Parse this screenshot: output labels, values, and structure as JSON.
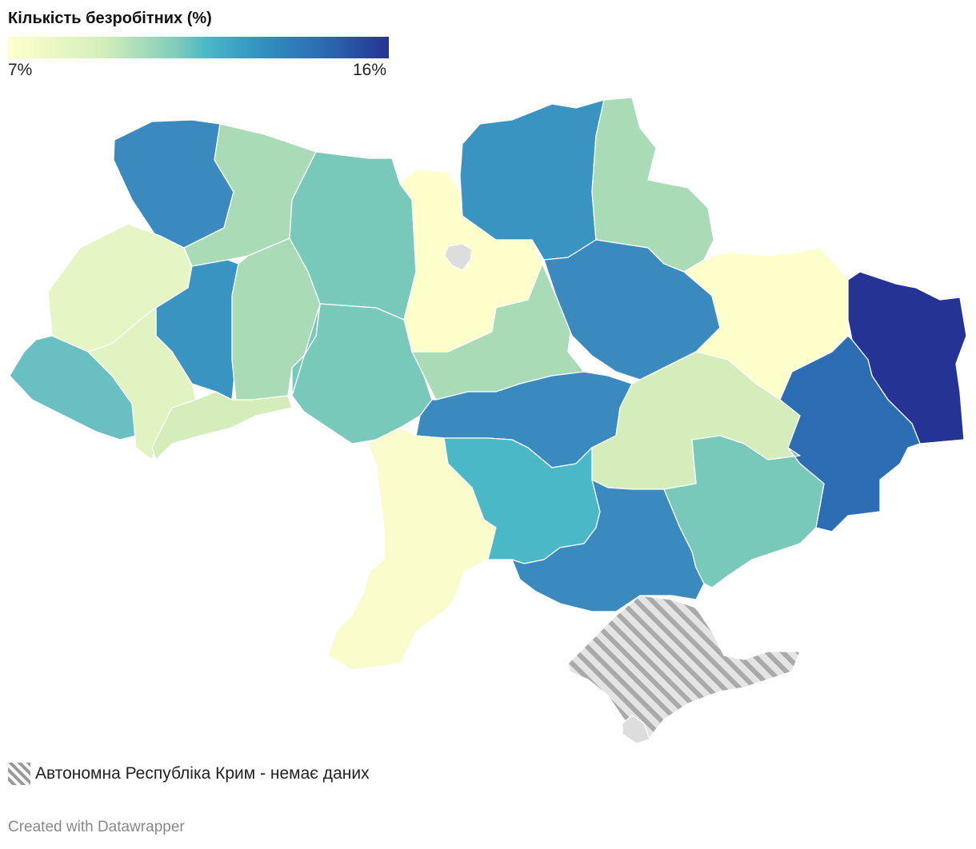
{
  "legend": {
    "title": "Кількість безробітних (%)",
    "min_label": "7%",
    "max_label": "16%",
    "color_min": "#ffffcc",
    "color_max": "#253494"
  },
  "no_data": {
    "label": "Автономна Республіка Крим - немає даних",
    "pattern": "diagonal-hatch",
    "color": "#aaaaaa"
  },
  "regions": [
    {
      "color": "#3a8abf"
    },
    {
      "color": "#a8dbb6"
    },
    {
      "color": "#79c9bb"
    },
    {
      "color": "#ffffcc"
    },
    {
      "color": "#3a94c1"
    },
    {
      "color": "#a8dbb6"
    },
    {
      "color": "#e5f5c4"
    },
    {
      "color": "#3a94c1"
    },
    {
      "color": "#a8dbb6"
    },
    {
      "color": "#79c9bb"
    },
    {
      "color": "#ffffcc"
    },
    {
      "color": "#a8dbb6"
    },
    {
      "color": "#3a8abf"
    },
    {
      "color": "#ffffcc"
    },
    {
      "color": "#253494"
    },
    {
      "color": "#69bfc1"
    },
    {
      "color": "#e0f3c0"
    },
    {
      "color": "#d4edbb"
    },
    {
      "color": "#79c9bb"
    },
    {
      "color": "#3a8abf"
    },
    {
      "color": "#d4edbb"
    },
    {
      "color": "#2c6db3"
    },
    {
      "color": "#fafccc"
    },
    {
      "color": "#4ab8c6"
    },
    {
      "color": "#3a8abf"
    },
    {
      "color": "#79c9bb"
    },
    {
      "color": "#dddddd"
    }
  ],
  "footer": {
    "credit": "Created with Datawrapper"
  }
}
